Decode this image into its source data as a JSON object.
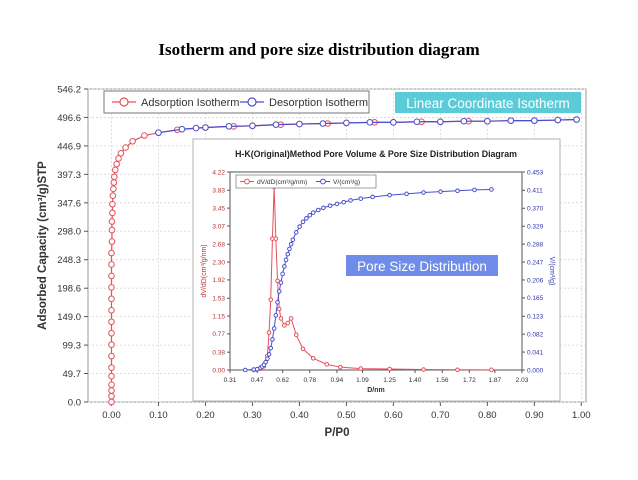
{
  "page": {
    "title": "Isotherm and pore size distribution diagram"
  },
  "colors": {
    "adsorption": "#e8505b",
    "desorption": "#4a4fd0",
    "badge_linear": "#5ccbd8",
    "badge_psd": "#6f8ce8",
    "pore_volume": "#4a4fd0",
    "dvdd": "#e8505b"
  },
  "chart_data": [
    {
      "id": "isotherm",
      "type": "line",
      "title": "",
      "badge": "Linear Coordinate Isotherm",
      "xlabel": "P/P0",
      "ylabel": "Adsorbed Capacity (cm³/g)STP",
      "xlim": [
        -0.05,
        1.01
      ],
      "ylim": [
        0,
        546.2
      ],
      "xticks": [
        "0.00",
        "0.10",
        "0.20",
        "0.30",
        "0.40",
        "0.50",
        "0.60",
        "0.70",
        "0.80",
        "0.90",
        "1.00"
      ],
      "yticks": [
        "0.0",
        "49.7",
        "99.3",
        "149.0",
        "198.6",
        "248.3",
        "298.0",
        "347.6",
        "397.3",
        "446.9",
        "496.6",
        "546.2"
      ],
      "grid": true,
      "legend_position": "top-left",
      "series": [
        {
          "name": "Adsorption Isotherm",
          "x": [
            0.0,
            0.0,
            0.0,
            0.0,
            0.0,
            0.0,
            0.0,
            0.0,
            0.0,
            0.0,
            0.0,
            0.0,
            0.0,
            0.0,
            0.0,
            0.0,
            0.001,
            0.001,
            0.001,
            0.002,
            0.002,
            0.003,
            0.004,
            0.005,
            0.006,
            0.008,
            0.011,
            0.015,
            0.02,
            0.03,
            0.045,
            0.07,
            0.1,
            0.14,
            0.2,
            0.26,
            0.3,
            0.36,
            0.4,
            0.46,
            0.5,
            0.56,
            0.6,
            0.66,
            0.7,
            0.76,
            0.8,
            0.85,
            0.9,
            0.95,
            0.99
          ],
          "y": [
            0,
            10,
            20,
            30,
            45,
            60,
            80,
            100,
            120,
            140,
            160,
            180,
            200,
            220,
            240,
            260,
            280,
            300,
            315,
            330,
            345,
            360,
            372,
            383,
            393,
            405,
            415,
            425,
            434,
            444,
            455,
            465,
            470,
            475,
            479,
            481,
            482,
            484,
            485,
            486,
            487,
            488,
            488,
            489,
            489,
            490,
            490,
            491,
            491,
            492,
            493
          ]
        },
        {
          "name": "Desorption Isotherm",
          "x": [
            0.99,
            0.95,
            0.9,
            0.85,
            0.8,
            0.75,
            0.7,
            0.65,
            0.6,
            0.55,
            0.5,
            0.45,
            0.4,
            0.35,
            0.3,
            0.25,
            0.2,
            0.18,
            0.15,
            0.1
          ],
          "y": [
            493,
            492,
            491,
            491,
            490,
            490,
            489,
            489,
            488,
            488,
            487,
            486,
            485,
            484,
            482,
            481,
            479,
            478,
            476,
            470
          ]
        }
      ]
    },
    {
      "id": "psd",
      "type": "line",
      "title": "H-K(Original)Method Pore Volume & Pore Size Distribution Diagram",
      "badge": "Pore Size Distribution",
      "xlabel": "D/nm",
      "ylabel_left": "dV/dD(cm³/g/nm)",
      "ylabel_right": "V/(cm³/g)",
      "xlim": [
        0.31,
        2.03
      ],
      "ylim_left": [
        0,
        4.22
      ],
      "ylim_right": [
        0,
        0.453
      ],
      "xticks": [
        "0.31",
        "0.47",
        "0.62",
        "0.78",
        "0.94",
        "1.09",
        "1.25",
        "1.40",
        "1.56",
        "1.72",
        "1.87",
        "2.03"
      ],
      "yticks_left": [
        "0.00",
        "0.38",
        "0.77",
        "1.15",
        "1.53",
        "1.92",
        "2.30",
        "2.68",
        "3.07",
        "3.45",
        "3.83",
        "4.22"
      ],
      "yticks_right": [
        "0.000",
        "0.041",
        "0.082",
        "0.123",
        "0.165",
        "0.206",
        "0.247",
        "0.288",
        "0.329",
        "0.370",
        "0.411",
        "0.453"
      ],
      "grid": false,
      "legend_position": "top-left",
      "series": [
        {
          "name": "dV/dD(cm³/g/nm)",
          "axis": "left",
          "x": [
            0.45,
            0.47,
            0.49,
            0.51,
            0.53,
            0.54,
            0.55,
            0.56,
            0.57,
            0.58,
            0.59,
            0.6,
            0.61,
            0.63,
            0.65,
            0.67,
            0.7,
            0.74,
            0.8,
            0.88,
            0.96,
            1.08,
            1.25,
            1.45,
            1.65,
            1.85
          ],
          "y": [
            0,
            0.01,
            0.03,
            0.08,
            0.3,
            0.8,
            1.5,
            2.8,
            3.9,
            2.8,
            1.9,
            1.3,
            1.1,
            0.95,
            1.0,
            1.1,
            0.75,
            0.45,
            0.25,
            0.12,
            0.06,
            0.03,
            0.02,
            0.01,
            0.005,
            0.003
          ]
        },
        {
          "name": "V/(cm³/g)",
          "axis": "right",
          "x": [
            0.4,
            0.45,
            0.47,
            0.49,
            0.5,
            0.51,
            0.52,
            0.53,
            0.54,
            0.55,
            0.56,
            0.57,
            0.58,
            0.59,
            0.6,
            0.61,
            0.62,
            0.63,
            0.64,
            0.65,
            0.66,
            0.67,
            0.68,
            0.7,
            0.72,
            0.74,
            0.76,
            0.78,
            0.8,
            0.83,
            0.86,
            0.9,
            0.94,
            0.98,
            1.02,
            1.08,
            1.15,
            1.25,
            1.35,
            1.45,
            1.55,
            1.65,
            1.75,
            1.85
          ],
          "y": [
            0,
            0.001,
            0.002,
            0.005,
            0.008,
            0.012,
            0.018,
            0.026,
            0.036,
            0.05,
            0.07,
            0.095,
            0.125,
            0.155,
            0.18,
            0.2,
            0.22,
            0.237,
            0.252,
            0.265,
            0.277,
            0.288,
            0.298,
            0.315,
            0.328,
            0.339,
            0.347,
            0.354,
            0.36,
            0.366,
            0.371,
            0.376,
            0.38,
            0.384,
            0.388,
            0.392,
            0.396,
            0.4,
            0.403,
            0.406,
            0.408,
            0.41,
            0.412,
            0.413
          ]
        }
      ]
    }
  ]
}
